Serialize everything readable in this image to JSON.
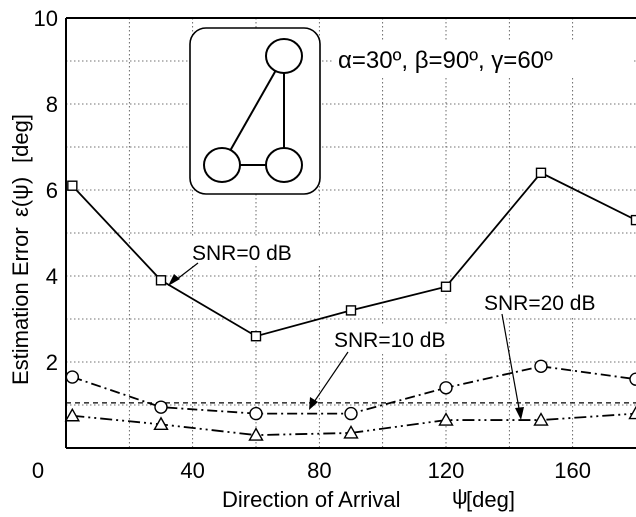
{
  "chart_data": {
    "type": "line",
    "xlabel": "Direction of Arrival",
    "xlabel_symbol": "ψ",
    "xlabel_unit": "[deg]",
    "ylabel": "Estimation Error",
    "ylabel_symbol": "ε(ψ)",
    "ylabel_unit": "[deg]",
    "xlim": [
      0,
      180
    ],
    "ylim": [
      0,
      10
    ],
    "x_ticks": [
      0,
      40,
      80,
      120,
      160
    ],
    "y_ticks": [
      2,
      4,
      6,
      8,
      10
    ],
    "grid": true,
    "parameters_text": "α=30º, β=90º, γ=60º",
    "series": [
      {
        "name": "SNR=0 dB",
        "marker": "square",
        "line_style": "solid",
        "x": [
          2,
          30,
          60,
          90,
          120,
          150,
          180
        ],
        "y": [
          6.1,
          3.9,
          2.6,
          3.2,
          3.75,
          6.4,
          5.3
        ]
      },
      {
        "name": "SNR=10 dB",
        "marker": "circle",
        "line_style": "dash-dot",
        "x": [
          2,
          30,
          60,
          90,
          120,
          150,
          180
        ],
        "y": [
          1.65,
          0.95,
          0.8,
          0.8,
          1.4,
          1.9,
          1.6
        ]
      },
      {
        "name": "SNR=20 dB",
        "marker": "triangle",
        "line_style": "dash-dot-dot",
        "x": [
          2,
          30,
          60,
          90,
          120,
          150,
          180
        ],
        "y": [
          0.75,
          0.55,
          0.3,
          0.35,
          0.65,
          0.65,
          0.8
        ]
      }
    ],
    "reference_line": {
      "y": 1.05,
      "line_style": "dashed"
    }
  }
}
